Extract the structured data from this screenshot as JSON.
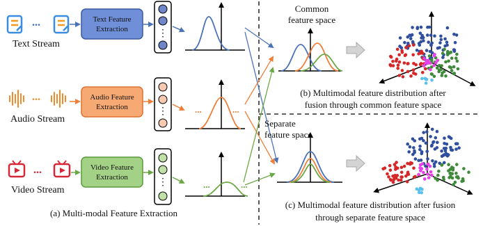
{
  "streams": [
    {
      "label": "Text Stream",
      "module": [
        "Text Feature",
        "Extraction"
      ],
      "color": "#4a72b6",
      "fill": "#6f8fd8",
      "node_fill": "#6f86c9",
      "box_stroke": "#3c5aa0"
    },
    {
      "label": "Audio Stream",
      "module": [
        "Audio Feature",
        "Extraction"
      ],
      "color": "#ee7f3a",
      "fill": "#f7a974",
      "node_fill": "#f6c9b0",
      "box_stroke": "#e07030"
    },
    {
      "label": "Video Stream",
      "module": [
        "Video Feature",
        "Extraction"
      ],
      "color": "#6aa846",
      "fill": "#a3d185",
      "node_fill": "#bfe0a6",
      "box_stroke": "#5a9a3a"
    }
  ],
  "icons": {
    "text": "document-icon",
    "audio": "waveform-icon",
    "video": "video-play-icon"
  },
  "ellipsis": "...",
  "node_ellipsis": "⋮",
  "caption_a": "(a) Multi-modal Feature Extraction",
  "common_space": [
    "Common",
    "feature space"
  ],
  "separate_space": [
    "Separate",
    "feature space"
  ],
  "caption_b": [
    "(b) Multimodal feature distribution after",
    "fusion through common feature space"
  ],
  "caption_c": [
    "(c) Multimodal feature distribution after fusion",
    "through separate feature space"
  ],
  "colors": {
    "arrow_gray": "#c8c8c8",
    "dashed": "#000000",
    "scatter": [
      "#2f4f9e",
      "#d62728",
      "#e640e6",
      "#3f8a3a",
      "#5bc0eb"
    ]
  }
}
